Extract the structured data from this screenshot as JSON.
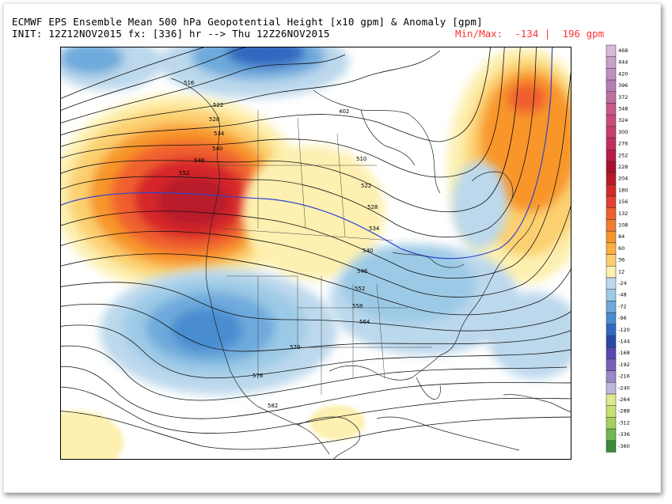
{
  "header": {
    "title_line1": "ECMWF EPS Ensemble Mean 500 hPa Geopotential Height [x10 gpm] & Anomaly [gpm]",
    "title_line2": "INIT: 12Z12NOV2015 fx: [336] hr --> Thu 12Z26NOV2015",
    "minmax": "Min/Max:  -134 |  196 gpm"
  },
  "contour_labels": [
    "516",
    "522",
    "528",
    "534",
    "540",
    "546",
    "552",
    "522",
    "528",
    "534",
    "540",
    "546",
    "552",
    "558",
    "564",
    "570",
    "576",
    "582",
    "402",
    "510"
  ],
  "colorbar": {
    "labels": [
      "468",
      "444",
      "420",
      "396",
      "372",
      "348",
      "324",
      "300",
      "276",
      "252",
      "228",
      "204",
      "180",
      "156",
      "132",
      "108",
      "84",
      "60",
      "36",
      "12",
      "-24",
      "-48",
      "-72",
      "-96",
      "-120",
      "-144",
      "-168",
      "-192",
      "-216",
      "-240",
      "-264",
      "-288",
      "-312",
      "-336",
      "-360"
    ],
    "colors": [
      "#d8b8d8",
      "#c8a0c8",
      "#c090c0",
      "#b480b4",
      "#c070a0",
      "#c85a8a",
      "#cc4a7a",
      "#c83c6e",
      "#c42e5e",
      "#b81e44",
      "#a8102c",
      "#b81a2a",
      "#d6282a",
      "#e64030",
      "#f0602e",
      "#f47c30",
      "#f8962c",
      "#fcb040",
      "#fcd070",
      "#fdf0b0",
      "#bcd8ec",
      "#9ccae6",
      "#6eaadc",
      "#4a8cd0",
      "#3068c0",
      "#2848a8",
      "#5848b0",
      "#7860b8",
      "#9888c8",
      "#c0b8dc",
      "#e0e890",
      "#c8e070",
      "#a4d060",
      "#70b850",
      "#3a8a3a"
    ]
  }
}
